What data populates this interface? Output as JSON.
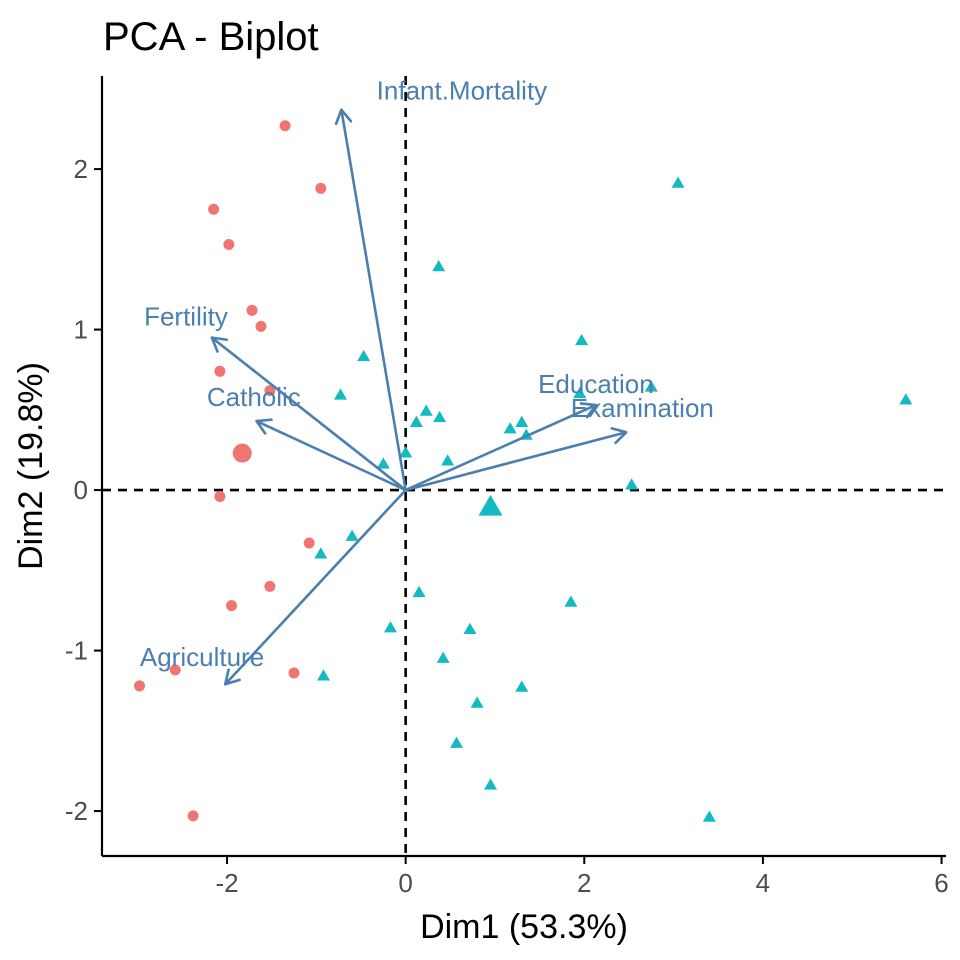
{
  "chart_data": {
    "type": "scatter",
    "title": "PCA - Biplot",
    "xlabel": "Dim1 (53.3%)",
    "ylabel": "Dim2 (19.8%)",
    "xlim": [
      -3.4,
      6.05
    ],
    "ylim": [
      -2.28,
      2.58
    ],
    "x_ticks": [
      -2,
      0,
      2,
      4,
      6
    ],
    "y_ticks": [
      -2,
      -1,
      0,
      1,
      2
    ],
    "x_tick_labels": [
      "-2",
      "0",
      "2",
      "4",
      "6"
    ],
    "y_tick_labels": [
      "-2",
      "-1",
      "0",
      "1",
      "2"
    ],
    "grid": false,
    "reference_lines": {
      "x": 0,
      "y": 0,
      "style": "dashed"
    },
    "colors": {
      "group1": "#F07470",
      "group2": "#14BAC2",
      "variables": "#4A7FB0",
      "axis": "#000000",
      "tick_label": "#4d4d4d"
    },
    "series": [
      {
        "marker": "circle",
        "color": "#F07470",
        "points": [
          {
            "x": -1.35,
            "y": 2.27
          },
          {
            "x": -0.95,
            "y": 1.88
          },
          {
            "x": -2.15,
            "y": 1.75
          },
          {
            "x": -1.98,
            "y": 1.53
          },
          {
            "x": -1.72,
            "y": 1.12
          },
          {
            "x": -1.62,
            "y": 1.02
          },
          {
            "x": -2.08,
            "y": 0.74
          },
          {
            "x": -1.52,
            "y": 0.62
          },
          {
            "x": -2.08,
            "y": -0.04
          },
          {
            "x": -1.08,
            "y": -0.33
          },
          {
            "x": -1.52,
            "y": -0.6
          },
          {
            "x": -1.95,
            "y": -0.72
          },
          {
            "x": -1.25,
            "y": -1.14
          },
          {
            "x": -2.58,
            "y": -1.12
          },
          {
            "x": -2.98,
            "y": -1.22
          },
          {
            "x": -2.38,
            "y": -2.03
          }
        ],
        "centroid": {
          "x": -1.83,
          "y": 0.23
        }
      },
      {
        "marker": "triangle",
        "color": "#14BAC2",
        "points": [
          {
            "x": 3.05,
            "y": 1.91
          },
          {
            "x": 0.37,
            "y": 1.39
          },
          {
            "x": 1.97,
            "y": 0.93
          },
          {
            "x": -0.47,
            "y": 0.83
          },
          {
            "x": 2.75,
            "y": 0.64
          },
          {
            "x": 1.95,
            "y": 0.6
          },
          {
            "x": -0.73,
            "y": 0.59
          },
          {
            "x": 5.6,
            "y": 0.56
          },
          {
            "x": 0.23,
            "y": 0.49
          },
          {
            "x": 0.38,
            "y": 0.45
          },
          {
            "x": 0.12,
            "y": 0.42
          },
          {
            "x": 1.3,
            "y": 0.42
          },
          {
            "x": 1.17,
            "y": 0.38
          },
          {
            "x": 1.35,
            "y": 0.34
          },
          {
            "x": 0.0,
            "y": 0.23
          },
          {
            "x": 0.47,
            "y": 0.18
          },
          {
            "x": -0.25,
            "y": 0.16
          },
          {
            "x": 2.53,
            "y": 0.03
          },
          {
            "x": -0.6,
            "y": -0.29
          },
          {
            "x": -0.95,
            "y": -0.4
          },
          {
            "x": 0.15,
            "y": -0.64
          },
          {
            "x": 1.85,
            "y": -0.7
          },
          {
            "x": -0.17,
            "y": -0.86
          },
          {
            "x": 0.72,
            "y": -0.87
          },
          {
            "x": 0.42,
            "y": -1.05
          },
          {
            "x": -0.92,
            "y": -1.16
          },
          {
            "x": 1.3,
            "y": -1.23
          },
          {
            "x": 0.8,
            "y": -1.33
          },
          {
            "x": 0.57,
            "y": -1.58
          },
          {
            "x": 0.95,
            "y": -1.84
          },
          {
            "x": 3.4,
            "y": -2.04
          }
        ],
        "centroid": {
          "x": 0.95,
          "y": -0.11
        }
      }
    ],
    "variables": [
      {
        "name": "Infant.Mortality",
        "x": -0.72,
        "y": 2.37,
        "label_x": 0.63,
        "label_y": 2.49
      },
      {
        "name": "Fertility",
        "x": -2.17,
        "y": 0.95,
        "label_x": -2.46,
        "label_y": 1.08
      },
      {
        "name": "Catholic",
        "x": -1.67,
        "y": 0.43,
        "label_x": -1.7,
        "label_y": 0.58
      },
      {
        "name": "Education",
        "x": 2.13,
        "y": 0.53,
        "label_x": 2.13,
        "label_y": 0.66
      },
      {
        "name": "Examination",
        "x": 2.47,
        "y": 0.36,
        "label_x": 2.65,
        "label_y": 0.51
      },
      {
        "name": "Agriculture",
        "x": -2.02,
        "y": -1.21,
        "label_x": -2.28,
        "label_y": -1.04
      }
    ]
  }
}
